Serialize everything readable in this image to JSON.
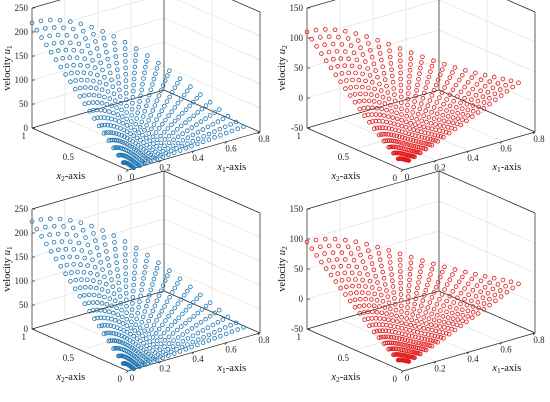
{
  "chart_data": [
    {
      "type": "scatter",
      "title": "",
      "zlabel_text": "velocity ",
      "zlabel_sym": "u",
      "zlabel_sub": "1",
      "xlabel_sym": "x",
      "xlabel_sub": "1",
      "xlabel_text": "-axis",
      "ylabel_sym": "x",
      "ylabel_sub": "2",
      "ylabel_text": "-axis",
      "x_ticks": [
        "0",
        "0.2",
        "0.4",
        "0.6",
        "0.8"
      ],
      "y_ticks": [
        "0",
        "0.5",
        "1"
      ],
      "z_ticks": [
        "0",
        "50",
        "100",
        "150",
        "200",
        "250"
      ],
      "xlim": [
        0,
        0.8
      ],
      "ylim": [
        0,
        1
      ],
      "zlim": [
        0,
        250
      ],
      "grid": true,
      "marker": "open-circle",
      "color": "#1f77b4",
      "surface": {
        "rays": 22,
        "points_per_ray": 20,
        "ray_length_x1": 0.7,
        "ray_length_x2": 1.0,
        "peak": 215,
        "model": "u1"
      }
    },
    {
      "type": "scatter",
      "title": "",
      "zlabel_text": "velocity ",
      "zlabel_sym": "u",
      "zlabel_sub": "2",
      "xlabel_sym": "x",
      "xlabel_sub": "1",
      "xlabel_text": "-axis",
      "ylabel_sym": "x",
      "ylabel_sub": "2",
      "ylabel_text": "-axis",
      "x_ticks": [
        "0",
        "0.2",
        "0.4",
        "0.6",
        "0.8"
      ],
      "y_ticks": [
        "0",
        "0.5",
        "1"
      ],
      "z_ticks": [
        "-50",
        "0",
        "50",
        "100",
        "150"
      ],
      "xlim": [
        0,
        0.8
      ],
      "ylim": [
        0,
        1
      ],
      "zlim": [
        -50,
        150
      ],
      "grid": true,
      "marker": "open-circle",
      "color": "#e31a1c",
      "surface": {
        "rays": 22,
        "points_per_ray": 20,
        "ray_length_x1": 0.7,
        "ray_length_x2": 1.0,
        "peak": 110,
        "trough": -40,
        "model": "u2"
      }
    },
    {
      "type": "scatter",
      "title": "",
      "zlabel_text": "velocity ",
      "zlabel_sym": "u",
      "zlabel_sub": "1",
      "xlabel_sym": "x",
      "xlabel_sub": "1",
      "xlabel_text": "-axis",
      "ylabel_sym": "x",
      "ylabel_sub": "2",
      "ylabel_text": "-axis",
      "x_ticks": [
        "0",
        "0.2",
        "0.4",
        "0.6",
        "0.8"
      ],
      "y_ticks": [
        "0",
        "0.5",
        "1"
      ],
      "z_ticks": [
        "0",
        "50",
        "100",
        "150",
        "200",
        "250"
      ],
      "xlim": [
        0,
        0.8
      ],
      "ylim": [
        0,
        1
      ],
      "zlim": [
        0,
        250
      ],
      "grid": true,
      "marker": "open-circle",
      "color": "#1f77b4",
      "surface": {
        "rays": 22,
        "points_per_ray": 20,
        "ray_length_x1": 0.7,
        "ray_length_x2": 1.0,
        "peak": 220,
        "model": "u1"
      }
    },
    {
      "type": "scatter",
      "title": "",
      "zlabel_text": "velocity ",
      "zlabel_sym": "u",
      "zlabel_sub": "2",
      "xlabel_sym": "x",
      "xlabel_sub": "1",
      "xlabel_text": "-axis",
      "ylabel_sym": "x",
      "ylabel_sub": "2",
      "ylabel_text": "-axis",
      "x_ticks": [
        "0",
        "0.2",
        "0.4",
        "0.6",
        "0.8"
      ],
      "y_ticks": [
        "0",
        "0.5",
        "1"
      ],
      "z_ticks": [
        "-50",
        "0",
        "50",
        "100",
        "150"
      ],
      "xlim": [
        0,
        0.8
      ],
      "ylim": [
        0,
        1
      ],
      "zlim": [
        -50,
        150
      ],
      "grid": true,
      "marker": "open-circle",
      "color": "#e31a1c",
      "surface": {
        "rays": 22,
        "points_per_ray": 20,
        "ray_length_x1": 0.7,
        "ray_length_x2": 1.0,
        "peak": 95,
        "trough": -40,
        "model": "u2"
      }
    }
  ]
}
